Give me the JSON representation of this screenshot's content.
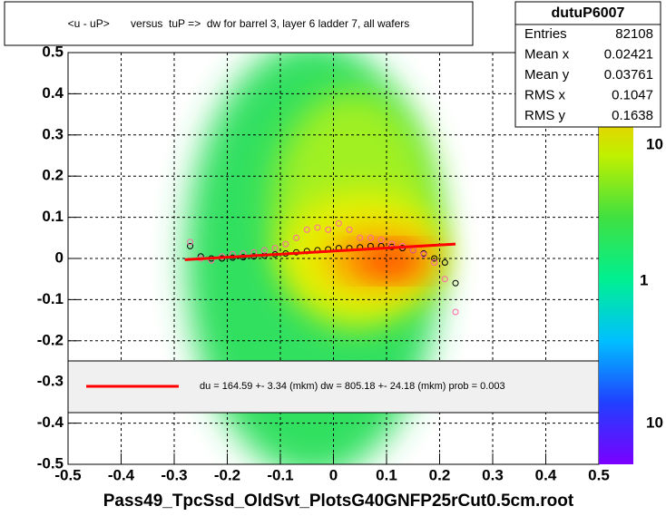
{
  "chart_data": {
    "type": "scatter",
    "title": "<u - uP>       versus  tuP =>  dw for barrel 3, layer 6 ladder 7, all wafers",
    "xlabel": "Pass49_TpcSsd_OldSvt_PlotsG40GNFP25rCut0.5cm.root",
    "xlim": [
      -0.5,
      0.5
    ],
    "ylim": [
      -0.5,
      0.5
    ],
    "xticks": [
      -0.5,
      -0.4,
      -0.3,
      -0.2,
      -0.1,
      0,
      0.1,
      0.2,
      0.3,
      0.4,
      0.5
    ],
    "yticks": [
      -0.5,
      -0.4,
      -0.3,
      -0.2,
      -0.1,
      0,
      0.1,
      0.2,
      0.3,
      0.4,
      0.5
    ],
    "grid": true,
    "series": [
      {
        "color": "#000000",
        "x": [
          -0.27,
          -0.25,
          -0.23,
          -0.21,
          -0.19,
          -0.17,
          -0.15,
          -0.13,
          -0.11,
          -0.09,
          -0.07,
          -0.05,
          -0.03,
          -0.01,
          0.01,
          0.03,
          0.05,
          0.07,
          0.09,
          0.11,
          0.13,
          0.15,
          0.17,
          0.19,
          0.21,
          0.23
        ],
        "values": [
          0.03,
          0.005,
          0.0,
          0.0,
          0.002,
          0.003,
          0.005,
          0.007,
          0.01,
          0.012,
          0.015,
          0.018,
          0.02,
          0.022,
          0.025,
          0.025,
          0.027,
          0.03,
          0.03,
          0.028,
          0.025,
          0.02,
          0.012,
          0.0,
          -0.01,
          -0.06
        ]
      },
      {
        "color": "#ff66aa",
        "x": [
          -0.27,
          -0.25,
          -0.23,
          -0.21,
          -0.19,
          -0.17,
          -0.15,
          -0.13,
          -0.11,
          -0.09,
          -0.07,
          -0.05,
          -0.03,
          -0.01,
          0.01,
          0.03,
          0.05,
          0.07,
          0.09,
          0.11,
          0.13,
          0.15,
          0.17,
          0.19,
          0.21,
          0.23
        ],
        "values": [
          0.04,
          0.0,
          -0.005,
          0.005,
          0.01,
          0.012,
          0.015,
          0.02,
          0.025,
          0.035,
          0.05,
          0.07,
          0.075,
          0.07,
          0.085,
          0.07,
          0.05,
          0.05,
          0.045,
          0.035,
          0.03,
          0.02,
          0.01,
          -0.01,
          -0.05,
          -0.13
        ]
      }
    ],
    "fit": {
      "color": "#ff0000",
      "x": [
        -0.28,
        0.23
      ],
      "values": [
        -0.003,
        0.035
      ],
      "label": "du =  164.59 +-  3.34 (mkm) dw =  805.18 +- 24.18 (mkm) prob = 0.003"
    },
    "stats": {
      "title": "dutuP6007",
      "rows": [
        [
          "Entries",
          82108
        ],
        [
          "Mean x",
          0.02421
        ],
        [
          "Mean y",
          0.03761
        ],
        [
          "RMS x",
          0.1047
        ],
        [
          "RMS y",
          0.1638
        ]
      ]
    },
    "palette_labels": [
      "10",
      "1",
      "10"
    ]
  }
}
